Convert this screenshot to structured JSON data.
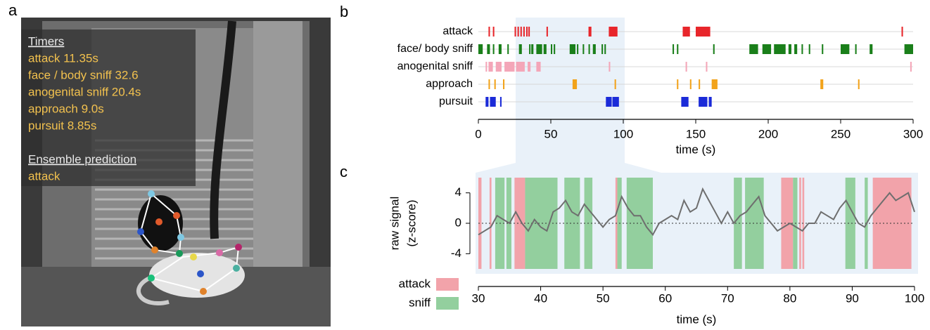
{
  "panel_a": {
    "label": "a",
    "timers_title": "Timers",
    "timers": [
      "attack 11.35s",
      "face / body sniff 32.6",
      "anogenital sniff 20.4s",
      "approach 9.0s",
      "pursuit 8.85s"
    ],
    "prediction_title": "Ensemble prediction",
    "prediction": "attack"
  },
  "chart_data": [
    {
      "type": "ethogram",
      "panel_label": "b",
      "xlabel": "time (s)",
      "xlim": [
        0,
        300
      ],
      "xticks": [
        0,
        50,
        100,
        150,
        200,
        250,
        300
      ],
      "categories": [
        "attack",
        "face/ body sniff",
        "anogenital sniff",
        "approach",
        "pursuit"
      ],
      "series": [
        {
          "name": "attack",
          "color": "#e8262b",
          "intervals": [
            [
              7,
              8
            ],
            [
              10,
              11
            ],
            [
              25,
              26
            ],
            [
              27,
              28
            ],
            [
              29,
              30
            ],
            [
              31,
              32
            ],
            [
              33,
              34
            ],
            [
              34.5,
              35.5
            ],
            [
              47,
              48
            ],
            [
              76,
              78
            ],
            [
              90,
              96
            ],
            [
              141,
              146
            ],
            [
              150,
              160
            ],
            [
              292,
              293
            ]
          ]
        },
        {
          "name": "face/ body sniff",
          "color": "#1a7f1a",
          "intervals": [
            [
              0,
              3
            ],
            [
              6,
              8
            ],
            [
              10,
              11
            ],
            [
              14,
              16
            ],
            [
              20,
              21
            ],
            [
              28,
              30
            ],
            [
              35,
              36
            ],
            [
              36.5,
              38
            ],
            [
              40,
              44
            ],
            [
              45,
              47
            ],
            [
              50,
              51
            ],
            [
              52,
              53
            ],
            [
              63,
              67
            ],
            [
              68,
              69
            ],
            [
              72,
              73
            ],
            [
              76,
              77
            ],
            [
              79,
              81
            ],
            [
              85,
              86
            ],
            [
              87,
              88
            ],
            [
              134,
              135
            ],
            [
              137,
              138
            ],
            [
              162,
              163
            ],
            [
              187,
              193
            ],
            [
              196,
              202
            ],
            [
              204,
              212
            ],
            [
              214,
              216
            ],
            [
              218,
              220
            ],
            [
              223,
              224
            ],
            [
              228,
              229
            ],
            [
              237,
              238
            ],
            [
              250,
              256
            ],
            [
              260,
              261
            ],
            [
              270,
              272
            ],
            [
              294,
              300
            ]
          ]
        },
        {
          "name": "anogenital sniff",
          "color": "#f4a6b8",
          "intervals": [
            [
              5,
              6
            ],
            [
              7,
              10
            ],
            [
              12,
              16
            ],
            [
              18,
              25
            ],
            [
              26,
              32
            ],
            [
              34,
              36
            ],
            [
              40,
              43
            ],
            [
              90,
              91
            ],
            [
              143,
              144
            ],
            [
              157,
              158
            ],
            [
              298,
              299
            ]
          ]
        },
        {
          "name": "approach",
          "color": "#f2a31b",
          "intervals": [
            [
              7,
              8
            ],
            [
              11,
              12
            ],
            [
              17,
              18
            ],
            [
              65,
              68
            ],
            [
              94,
              95
            ],
            [
              137,
              138
            ],
            [
              146,
              147
            ],
            [
              152,
              153
            ],
            [
              161,
              165
            ],
            [
              236,
              238
            ],
            [
              262,
              263
            ]
          ]
        },
        {
          "name": "pursuit",
          "color": "#1b2bd8",
          "intervals": [
            [
              5,
              7
            ],
            [
              8,
              12
            ],
            [
              15,
              16
            ],
            [
              88,
              92
            ],
            [
              92.5,
              97
            ],
            [
              140,
              145
            ],
            [
              152,
              158
            ],
            [
              159,
              161
            ]
          ]
        }
      ]
    },
    {
      "type": "line",
      "panel_label": "c",
      "xlabel": "time (s)",
      "ylabel": [
        "raw signal",
        "(z-score)"
      ],
      "xlim": [
        30,
        100
      ],
      "xticks": [
        30,
        40,
        50,
        60,
        70,
        80,
        90,
        100
      ],
      "ylim": [
        -6,
        6
      ],
      "yticks": [
        -4,
        0,
        4
      ],
      "hline": 0,
      "x": [
        30,
        31,
        32,
        33,
        34,
        35,
        36,
        37,
        38,
        39,
        40,
        41,
        42,
        43,
        44,
        45,
        46,
        47,
        48,
        49,
        50,
        51,
        52,
        53,
        54,
        55,
        56,
        57,
        58,
        59,
        60,
        61,
        62,
        63,
        64,
        65,
        66,
        67,
        68,
        69,
        70,
        71,
        72,
        73,
        74,
        75,
        76,
        77,
        78,
        79,
        80,
        81,
        82,
        83,
        84,
        85,
        86,
        87,
        88,
        89,
        90,
        91,
        92,
        93,
        94,
        95,
        96,
        97,
        98,
        99,
        100
      ],
      "series": [
        {
          "name": "raw signal",
          "color": "#6e6e6e",
          "values": [
            -1.5,
            -1,
            -0.5,
            1,
            0.5,
            0,
            1.5,
            0,
            -1,
            0.5,
            -0.5,
            -1,
            1.5,
            2,
            3,
            1.5,
            1,
            2.5,
            1.5,
            0.5,
            -0.5,
            0.5,
            1,
            3.5,
            2,
            1,
            1,
            -0.5,
            -1.5,
            0,
            0.5,
            1,
            0.5,
            3,
            1.5,
            2,
            4.5,
            3,
            1.5,
            0,
            1.5,
            0,
            1,
            1.5,
            2.5,
            3.5,
            1,
            0,
            -1,
            -0.5,
            0,
            -0.5,
            -1,
            0,
            0,
            1.5,
            1,
            0.5,
            2,
            3,
            1.5,
            0,
            -0.5,
            1,
            2,
            3,
            4,
            3,
            3.5,
            4,
            1.5
          ]
        }
      ],
      "regions": [
        {
          "name": "attack",
          "color": "#f2a3aa",
          "intervals": [
            [
              30,
              30.5
            ],
            [
              31.8,
              32.1
            ],
            [
              35.8,
              37.5
            ],
            [
              52,
              52.3
            ],
            [
              78.6,
              80.5
            ],
            [
              81.5,
              81.8
            ],
            [
              82,
              82.3
            ],
            [
              93.3,
              99.5
            ]
          ]
        },
        {
          "name": "sniff",
          "color": "#93cf9e",
          "intervals": [
            [
              32.7,
              34.2
            ],
            [
              34.5,
              35.3
            ],
            [
              37.5,
              42.7
            ],
            [
              43.8,
              46.3
            ],
            [
              47,
              48.3
            ],
            [
              52.3,
              53
            ],
            [
              53.8,
              58
            ],
            [
              71,
              72.3
            ],
            [
              72.8,
              75.8
            ],
            [
              80.5,
              81.2
            ],
            [
              88.9,
              90.5
            ],
            [
              92,
              92.5
            ]
          ]
        }
      ]
    }
  ]
}
